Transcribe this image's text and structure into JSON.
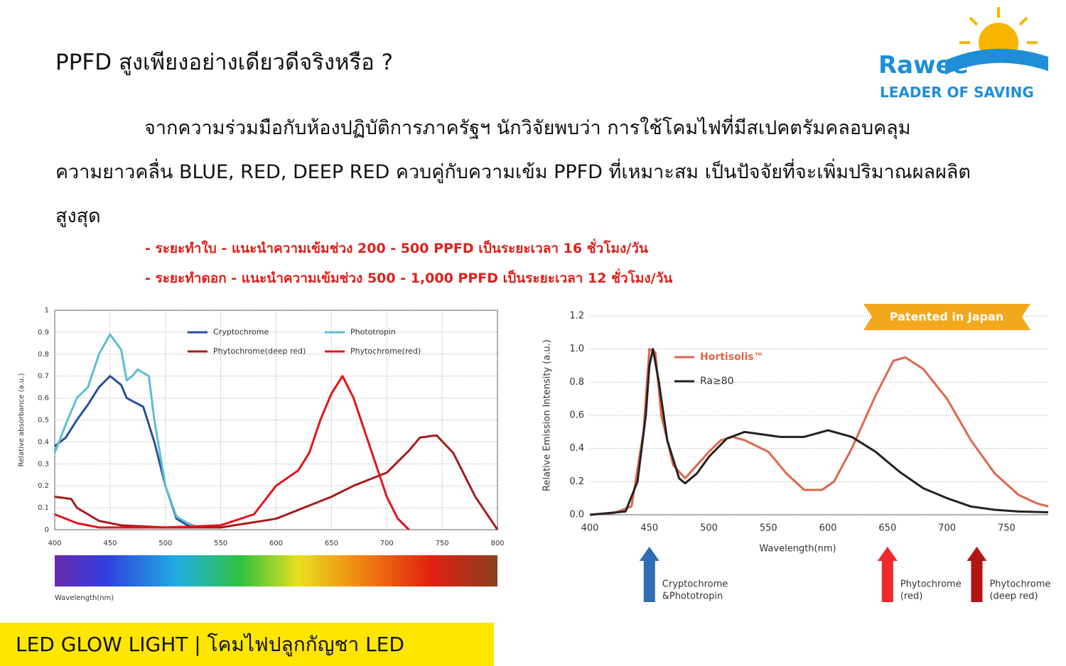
{
  "header": {
    "title": "PPFD สูงเพียงอย่างเดียวดีจริงหรือ ?",
    "logo_name": "Rawee",
    "logo_tagline": "LEADER OF SAVING"
  },
  "body": {
    "paragraph": "จากความร่วมมือกับห้องปฏิบัติการภาครัฐฯ นักวิจัยพบว่า การใช้โคมไฟที่มีสเปคตรัมคลอบคลุม ความยาวคลื่น BLUE, RED, DEEP RED ควบคู่กับความเข้ม PPFD ที่เหมาะสม เป็นปัจจัยที่จะเพิ่มปริมาณผลผลิตสูงสุด",
    "bullets": [
      "- ระยะทำใบ - แนะนำความเข้มช่วง 200 - 500 PPFD เป็นระยะเวลา 16 ชั่วโมง/วัน",
      "- ระยะทำดอก - แนะนำความเข้มช่วง 500 - 1,000 PPFD เป็นระยะเวลา 12 ชั่วโมง/วัน"
    ]
  },
  "footer": {
    "text": "LED GLOW LIGHT | โคมไฟปลูกกัญชา LED"
  },
  "chart_data": [
    {
      "type": "line",
      "ylabel": "Relative absorbance (a.u.)",
      "xlabel": "Wavelength(nm)",
      "grid": true,
      "legend": "top",
      "spectrum_bar": true,
      "xlim": [
        400,
        800
      ],
      "ylim": [
        0,
        1
      ],
      "xticks": [
        400,
        450,
        500,
        550,
        600,
        650,
        700,
        750,
        800
      ],
      "yticks": [
        0,
        0.1,
        0.2,
        0.3,
        0.4,
        0.5,
        0.6,
        0.7,
        0.8,
        0.9,
        1
      ],
      "series": [
        {
          "name": "Cryptochrome",
          "color": "#2a4f9c",
          "x": [
            400,
            410,
            420,
            430,
            440,
            450,
            460,
            465,
            480,
            490,
            500,
            510,
            520,
            530
          ],
          "values": [
            0.38,
            0.42,
            0.5,
            0.57,
            0.65,
            0.7,
            0.66,
            0.6,
            0.56,
            0.4,
            0.2,
            0.05,
            0.02,
            0.01
          ]
        },
        {
          "name": "Phototropin",
          "color": "#5bbfcf",
          "x": [
            400,
            410,
            420,
            430,
            440,
            450,
            460,
            465,
            470,
            475,
            485,
            490,
            500,
            510,
            520,
            530
          ],
          "values": [
            0.35,
            0.48,
            0.6,
            0.65,
            0.8,
            0.89,
            0.82,
            0.68,
            0.7,
            0.73,
            0.7,
            0.5,
            0.2,
            0.06,
            0.03,
            0.01
          ]
        },
        {
          "name": "Phytochrome(deep red)",
          "color": "#a51c1c",
          "x": [
            400,
            415,
            420,
            440,
            460,
            500,
            550,
            600,
            650,
            670,
            700,
            720,
            730,
            745,
            760,
            780,
            800
          ],
          "values": [
            0.15,
            0.14,
            0.1,
            0.04,
            0.02,
            0.01,
            0.01,
            0.05,
            0.15,
            0.2,
            0.26,
            0.36,
            0.42,
            0.43,
            0.35,
            0.15,
            0
          ]
        },
        {
          "name": "Phytochrome(red)",
          "color": "#e3131b",
          "x": [
            400,
            420,
            440,
            500,
            550,
            580,
            600,
            620,
            630,
            640,
            650,
            660,
            670,
            690,
            700,
            710,
            720
          ],
          "values": [
            0.07,
            0.03,
            0.01,
            0.01,
            0.02,
            0.07,
            0.2,
            0.27,
            0.35,
            0.5,
            0.62,
            0.7,
            0.6,
            0.3,
            0.15,
            0.05,
            0
          ]
        }
      ]
    },
    {
      "type": "line",
      "ylabel": "Relative Emission Intensity (a.u.)",
      "xlabel": "Wavelength(nm)",
      "grid": true,
      "legend": "upper left",
      "badge": "Patented in Japan",
      "xlim": [
        400,
        785
      ],
      "ylim": [
        0,
        1.2
      ],
      "xticks": [
        400,
        450,
        500,
        550,
        600,
        650,
        700,
        750
      ],
      "yticks": [
        {
          "value": 0,
          "label": "0.0"
        },
        0.2,
        0.4,
        0.6,
        0.8,
        {
          "value": 1,
          "label": "1.0"
        },
        1.2
      ],
      "series": [
        {
          "name": "Hortisolis™",
          "color": "#e0664a",
          "x": [
            400,
            420,
            435,
            445,
            450,
            455,
            460,
            470,
            480,
            490,
            500,
            510,
            520,
            530,
            550,
            565,
            580,
            595,
            605,
            620,
            640,
            655,
            665,
            680,
            700,
            720,
            740,
            760,
            775,
            785
          ],
          "values": [
            0,
            0.01,
            0.05,
            0.5,
            1,
            0.98,
            0.6,
            0.3,
            0.22,
            0.3,
            0.38,
            0.45,
            0.47,
            0.45,
            0.38,
            0.25,
            0.15,
            0.15,
            0.2,
            0.4,
            0.72,
            0.93,
            0.95,
            0.88,
            0.7,
            0.45,
            0.25,
            0.12,
            0.07,
            0.05
          ]
        },
        {
          "name": "Ra≥80",
          "color": "#222222",
          "x": [
            400,
            430,
            440,
            447,
            450,
            453,
            458,
            465,
            475,
            480,
            490,
            500,
            515,
            530,
            560,
            580,
            600,
            620,
            640,
            660,
            680,
            700,
            720,
            740,
            760,
            785
          ],
          "values": [
            0,
            0.02,
            0.2,
            0.6,
            0.9,
            1,
            0.8,
            0.45,
            0.22,
            0.19,
            0.25,
            0.35,
            0.46,
            0.5,
            0.47,
            0.47,
            0.51,
            0.47,
            0.38,
            0.26,
            0.16,
            0.1,
            0.05,
            0.03,
            0.02,
            0.015
          ]
        }
      ],
      "annotations": [
        {
          "text": [
            "Cryptochrome",
            "&Phototropin"
          ],
          "x": 450,
          "color": "#2e6db4"
        },
        {
          "text": [
            "Phytochrome",
            "(red)"
          ],
          "x": 650,
          "color": "#f02a2a"
        },
        {
          "text": [
            "Phytochrome",
            "(deep red)"
          ],
          "x": 725,
          "color": "#b31515"
        }
      ]
    }
  ]
}
